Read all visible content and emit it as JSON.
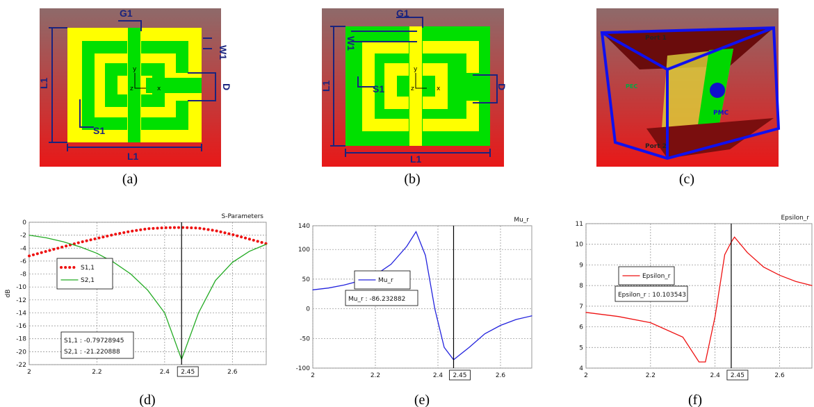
{
  "panels": [
    {
      "labels": [
        "G1",
        "W1",
        "L1",
        "D",
        "L1",
        "S1",
        "y",
        "z",
        "x"
      ],
      "caption": "(a)"
    },
    {
      "labels": [
        "G1",
        "W1",
        "L1",
        "D",
        "L1",
        "S1",
        "y",
        "z",
        "x"
      ],
      "caption": "(b)"
    },
    {
      "labels": [
        "Port 1",
        "PEC",
        "PMC",
        "Port 2"
      ],
      "caption": "(c)"
    }
  ],
  "chart_data": [
    {
      "type": "line",
      "title": "S-Parameters",
      "ylabel": "dB",
      "caption": "(d)",
      "x": [
        2,
        2.05,
        2.1,
        2.15,
        2.2,
        2.25,
        2.3,
        2.35,
        2.4,
        2.45,
        2.5,
        2.55,
        2.6,
        2.65,
        2.7
      ],
      "series": [
        {
          "name": "S1,1",
          "color": "#ee1111",
          "style": "dotted",
          "values": [
            -5.2,
            -4.5,
            -3.8,
            -3.1,
            -2.5,
            -1.9,
            -1.4,
            -1.0,
            -0.85,
            -0.8,
            -0.9,
            -1.3,
            -1.9,
            -2.6,
            -3.3
          ]
        },
        {
          "name": "S2,1",
          "color": "#22aa22",
          "style": "solid",
          "values": [
            -2,
            -2.4,
            -3,
            -3.8,
            -4.8,
            -6.2,
            -8,
            -10.5,
            -14,
            -21.2,
            -14,
            -9,
            -6.2,
            -4.5,
            -3.4
          ]
        }
      ],
      "xlim": [
        2,
        2.7
      ],
      "xticks": [
        2,
        2.2,
        2.4,
        2.6
      ],
      "ylim": [
        -22,
        0
      ],
      "yticks": [
        -22,
        -20,
        -18,
        -16,
        -14,
        -12,
        -10,
        -8,
        -6,
        -4,
        -2,
        0
      ],
      "grid": true,
      "marker_x": 2.45,
      "annotations": [
        "S1,1 : -0.79728945",
        "S2,1 : -21.220888"
      ]
    },
    {
      "type": "line",
      "title": "Mu_r",
      "caption": "(e)",
      "x": [
        2,
        2.05,
        2.1,
        2.15,
        2.2,
        2.25,
        2.3,
        2.33,
        2.36,
        2.39,
        2.42,
        2.45,
        2.5,
        2.55,
        2.6,
        2.65,
        2.7
      ],
      "series": [
        {
          "name": "Mu_r",
          "color": "#2222dd",
          "style": "solid",
          "values": [
            32,
            35,
            40,
            47,
            57,
            75,
            105,
            130,
            90,
            0,
            -65,
            -86,
            -65,
            -42,
            -28,
            -18,
            -12
          ]
        }
      ],
      "xlim": [
        2,
        2.7
      ],
      "xticks": [
        2,
        2.2,
        2.4,
        2.6
      ],
      "ylim": [
        -100,
        140
      ],
      "yticks": [
        -100,
        -50,
        0,
        50,
        100,
        140
      ],
      "grid": true,
      "marker_x": 2.45,
      "annotations": [
        "Mu_r : -86.232882"
      ]
    },
    {
      "type": "line",
      "title": "Epsilon_r",
      "caption": "(f)",
      "x": [
        2,
        2.1,
        2.2,
        2.3,
        2.35,
        2.37,
        2.4,
        2.43,
        2.45,
        2.46,
        2.5,
        2.55,
        2.6,
        2.65,
        2.7
      ],
      "series": [
        {
          "name": "Epsilon_r",
          "color": "#ee1111",
          "style": "solid",
          "values": [
            6.7,
            6.5,
            6.2,
            5.5,
            4.3,
            4.3,
            6.5,
            9.5,
            10.1,
            10.35,
            9.6,
            8.9,
            8.5,
            8.2,
            8.0
          ]
        }
      ],
      "xlim": [
        2,
        2.7
      ],
      "xticks": [
        2,
        2.2,
        2.4,
        2.6
      ],
      "ylim": [
        4,
        11
      ],
      "yticks": [
        4,
        5,
        6,
        7,
        8,
        9,
        10,
        11
      ],
      "grid": true,
      "marker_x": 2.45,
      "annotations": [
        "Epsilon_r : 10.103543"
      ]
    }
  ]
}
